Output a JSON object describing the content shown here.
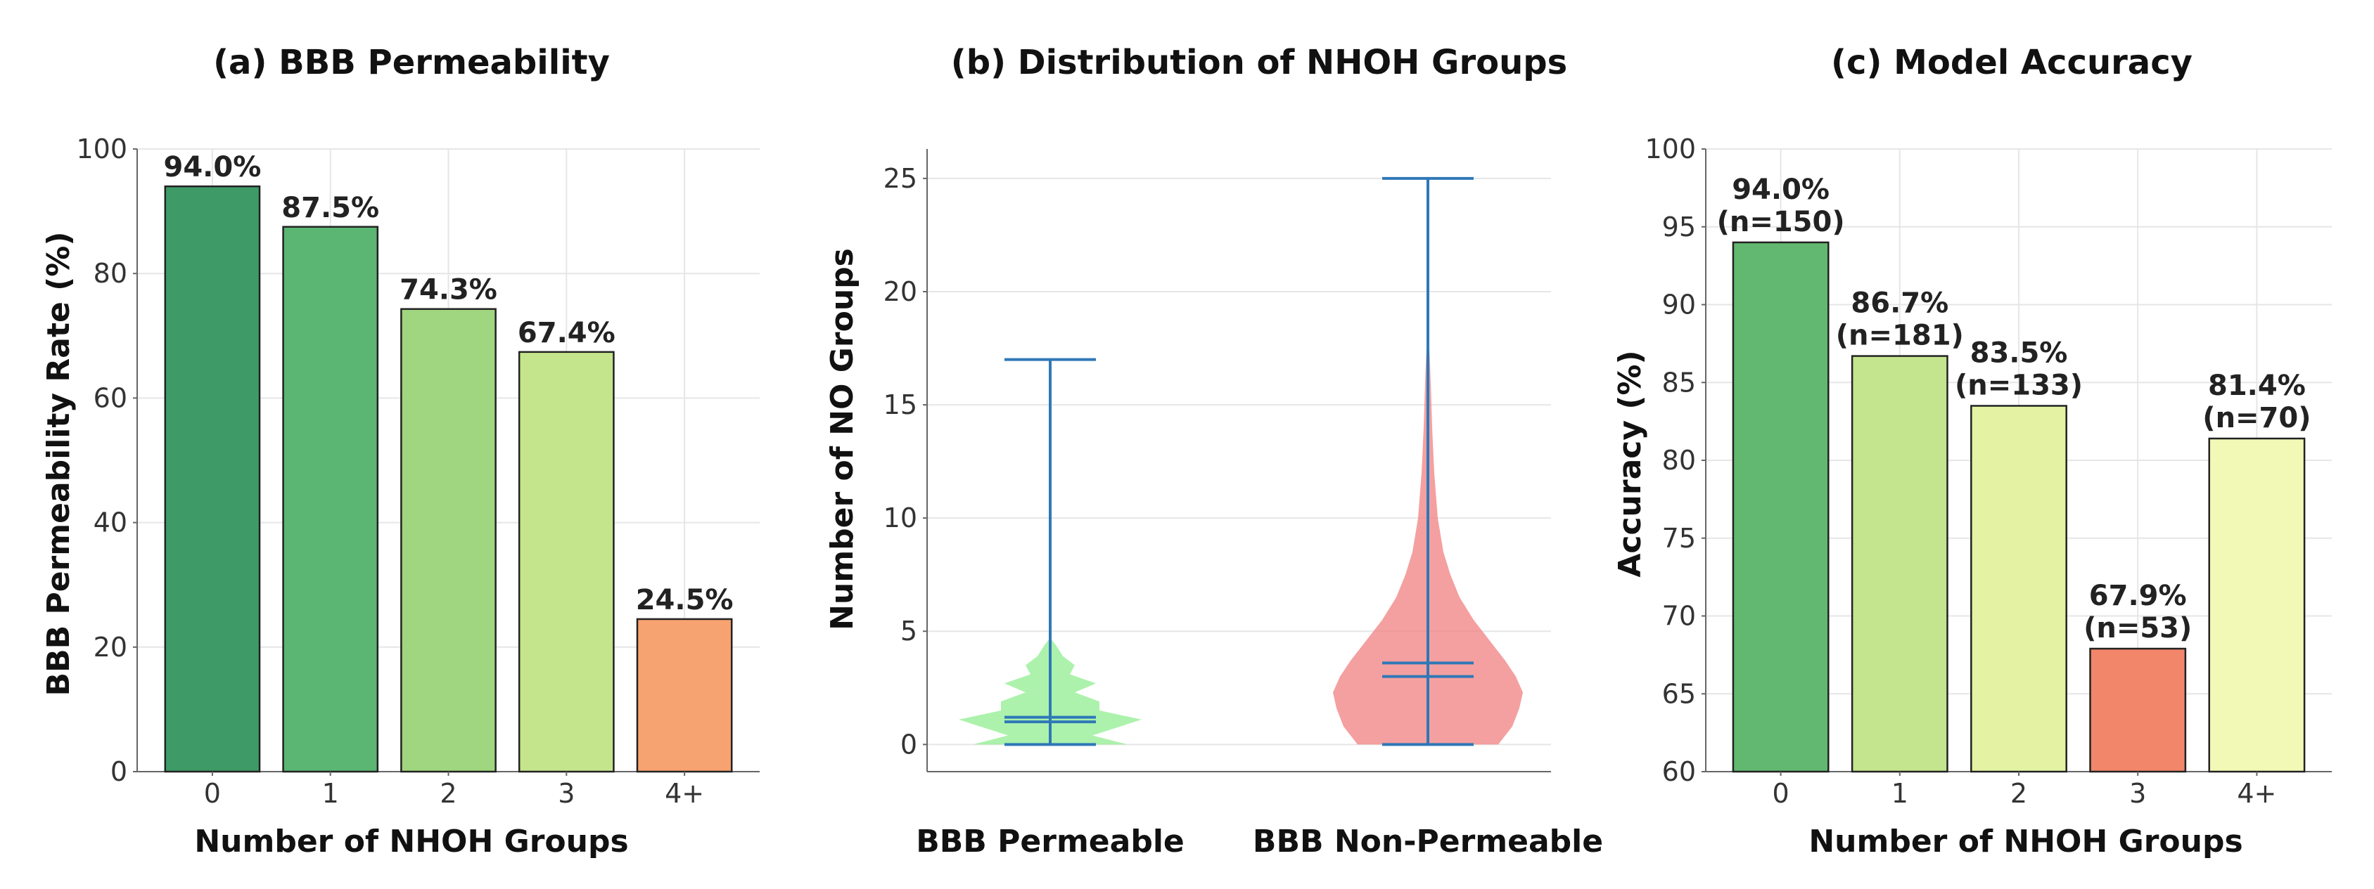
{
  "chart_data": [
    {
      "type": "bar",
      "title": "(a) BBB Permeability",
      "xlabel": "Number of NHOH Groups",
      "ylabel": "BBB Permeability Rate (%)",
      "categories": [
        "0",
        "1",
        "2",
        "3",
        "4+"
      ],
      "values": [
        94.0,
        87.5,
        74.3,
        67.4,
        24.5
      ],
      "value_labels": [
        "94.0%",
        "87.5%",
        "74.3%",
        "67.4%",
        "24.5%"
      ],
      "colors": [
        "#3e9a66",
        "#5bb673",
        "#9fd67f",
        "#c5e58d",
        "#f7a271"
      ],
      "ylim": [
        0,
        100
      ],
      "yticks": [
        0,
        20,
        40,
        60,
        80,
        100
      ],
      "grid": true
    },
    {
      "type": "violin",
      "title": "(b) Distribution of NHOH Groups",
      "xlabel": "",
      "ylabel": "Number of NO Groups",
      "categories": [
        "BBB Permeable",
        "BBB Non-Permeable"
      ],
      "series": [
        {
          "name": "BBB Permeable",
          "min": 0,
          "max": 17,
          "mean": 1.2,
          "median": 1.0,
          "color": "#90ee90"
        },
        {
          "name": "BBB Non-Permeable",
          "min": 0,
          "max": 25,
          "mean": 3.6,
          "median": 3.0,
          "color": "#f08080"
        }
      ],
      "ylim": [
        -1.2,
        26.3
      ],
      "yticks": [
        0,
        5,
        10,
        15,
        20,
        25
      ],
      "grid": true
    },
    {
      "type": "bar",
      "title": "(c) Model Accuracy",
      "xlabel": "Number of NHOH Groups",
      "ylabel": "Accuracy (%)",
      "categories": [
        "0",
        "1",
        "2",
        "3",
        "4+"
      ],
      "values": [
        94.0,
        86.7,
        83.5,
        67.9,
        81.4
      ],
      "value_labels": [
        "94.0%",
        "86.7%",
        "83.5%",
        "67.9%",
        "81.4%"
      ],
      "counts": [
        "(n=150)",
        "(n=181)",
        "(n=133)",
        "(n=53)",
        "(n=70)"
      ],
      "colors": [
        "#62b870",
        "#c4e58d",
        "#e3f3a3",
        "#f2866a",
        "#f2f8b5"
      ],
      "ylim": [
        60,
        100
      ],
      "yticks": [
        60,
        65,
        70,
        75,
        80,
        85,
        90,
        95,
        100
      ],
      "grid": true
    }
  ]
}
